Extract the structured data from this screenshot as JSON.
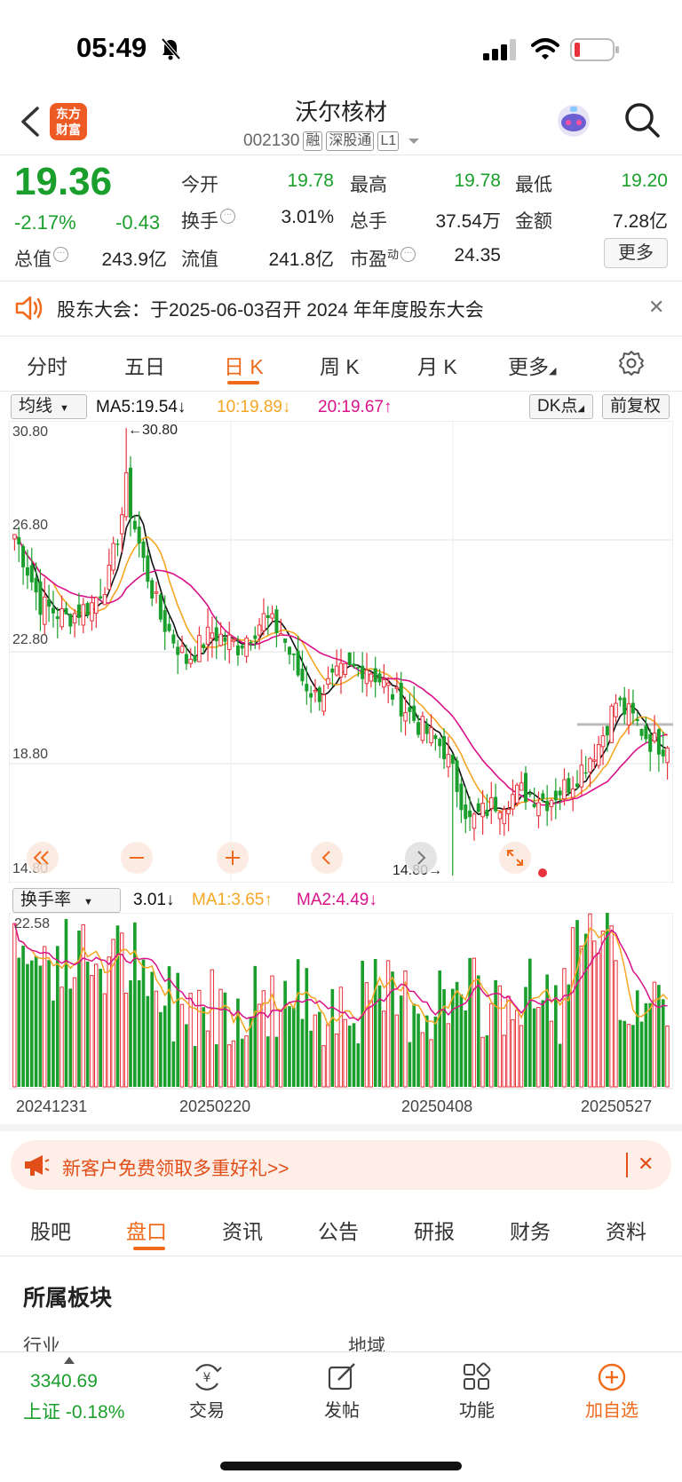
{
  "status_bar": {
    "time": "05:49"
  },
  "header": {
    "logo": "东方财富",
    "title": "沃尔核材",
    "code": "002130",
    "tags": [
      "融",
      "深股通",
      "L1"
    ]
  },
  "quote": {
    "price": "19.36",
    "change_pct": "-2.17%",
    "change": "-0.43",
    "fields": {
      "open_label": "今开",
      "open": "19.78",
      "high_label": "最高",
      "high": "19.78",
      "low_label": "最低",
      "low": "19.20",
      "turnover_label": "换手",
      "turnover": "3.01%",
      "volume_label": "总手",
      "volume": "37.54万",
      "amount_label": "金额",
      "amount": "7.28亿",
      "mktcap_label": "总值",
      "mktcap": "243.9亿",
      "float_label": "流值",
      "float": "241.8亿",
      "pe_label": "市盈",
      "pe_sup": "动",
      "pe": "24.35"
    },
    "more_label": "更多"
  },
  "notice": {
    "text": "股东大会：于2025-06-03召开 2024 年年度股东大会"
  },
  "chart_tabs": [
    "分时",
    "五日",
    "日 K",
    "周 K",
    "月 K",
    "更多"
  ],
  "active_chart_tab": "日 K",
  "ma_row": {
    "select": "均线",
    "ma5": "MA5:19.54↓",
    "ma10": "10:19.89↓",
    "ma20": "20:19.67↑",
    "dk": "DK点",
    "adjust": "前复权"
  },
  "vol_row": {
    "select": "换手率",
    "value": "3.01↓",
    "ma1": "MA1:3.65↑",
    "ma2": "MA2:4.49↓"
  },
  "colors": {
    "up": "#e8333c",
    "down": "#1a9f2c",
    "ma5": "#111111",
    "ma10": "#f5a623",
    "ma20": "#d9128a",
    "accent": "#ef6a1a"
  },
  "chart_data": {
    "type": "candlestick",
    "y_ticks": [
      "30.80",
      "26.80",
      "22.80",
      "18.80",
      "14.80"
    ],
    "ylim": [
      14.8,
      30.8
    ],
    "max_marker": "←30.80",
    "min_marker": "14.80→",
    "volume_max_label": "22.58",
    "x_ticks": [
      "20241231",
      "20250220",
      "20250408",
      "20250527"
    ],
    "last_close": 19.36
  },
  "promo": {
    "text": "新客户免费领取多重好礼>>"
  },
  "bottom_tabs": [
    "股吧",
    "盘口",
    "资讯",
    "公告",
    "研报",
    "财务",
    "资料"
  ],
  "active_bottom_tab": "盘口",
  "section": {
    "title": "所属板块",
    "industry": "行业",
    "region": "地域"
  },
  "bottom_nav": {
    "index_value": "3340.69",
    "index_name": "上证 -0.18%",
    "items": [
      "交易",
      "发帖",
      "功能",
      "加自选"
    ]
  }
}
